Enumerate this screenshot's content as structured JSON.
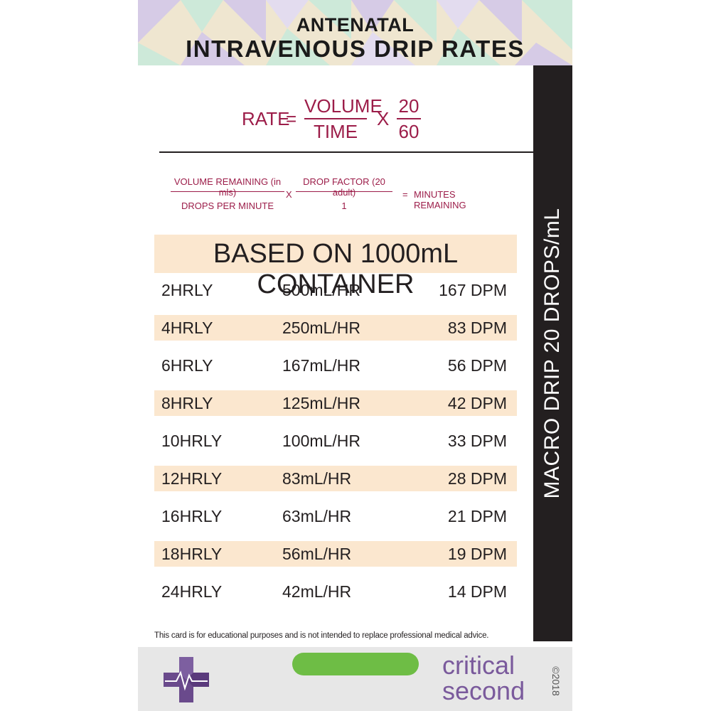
{
  "header": {
    "subtitle": "ANTENATAL",
    "title": "INTRAVENOUS DRIP RATES"
  },
  "formula": {
    "rate": "RATE",
    "equals": "=",
    "numerator": "VOLUME",
    "denominator": "TIME",
    "times": "X",
    "factor_numerator": "20",
    "factor_denominator": "60"
  },
  "formula2": {
    "numerator1": "VOLUME REMAINING (in mls)",
    "denominator1": "DROPS PER MINUTE",
    "times": "X",
    "numerator2": "DROP FACTOR (20 adult)",
    "denominator2": "1",
    "equals": "=",
    "result": "MINUTES REMAINING"
  },
  "banner": "BASED ON 1000mL CONTAINER",
  "side_label": "MACRO DRIP 20 DROPS/mL",
  "rows": [
    {
      "interval": "2HRLY",
      "rate": "500mL/HR",
      "dpm": "167 DPM"
    },
    {
      "interval": "4HRLY",
      "rate": "250mL/HR",
      "dpm": "83 DPM"
    },
    {
      "interval": "6HRLY",
      "rate": "167mL/HR",
      "dpm": "56 DPM"
    },
    {
      "interval": "8HRLY",
      "rate": "125mL/HR",
      "dpm": "42 DPM"
    },
    {
      "interval": "10HRLY",
      "rate": "100mL/HR",
      "dpm": "33 DPM"
    },
    {
      "interval": "12HRLY",
      "rate": "83mL/HR",
      "dpm": "28 DPM"
    },
    {
      "interval": "16HRLY",
      "rate": "63mL/HR",
      "dpm": "21 DPM"
    },
    {
      "interval": "18HRLY",
      "rate": "56mL/HR",
      "dpm": "19 DPM"
    },
    {
      "interval": "24HRLY",
      "rate": "42mL/HR",
      "dpm": "14 DPM"
    }
  ],
  "disclaimer": "This card is for educational purposes and is not intended to replace professional medical advice.",
  "footer": {
    "brand_line1": "critical",
    "brand_line2": "second",
    "copyright": "©2018",
    "logo_icon": "medical-cross-heartbeat-icon"
  },
  "colors": {
    "accent": "#9c1d49",
    "highlight": "#fbe7cf",
    "dark": "#231f20",
    "brand": "#7a5a9c",
    "pill": "#6ebd45"
  }
}
